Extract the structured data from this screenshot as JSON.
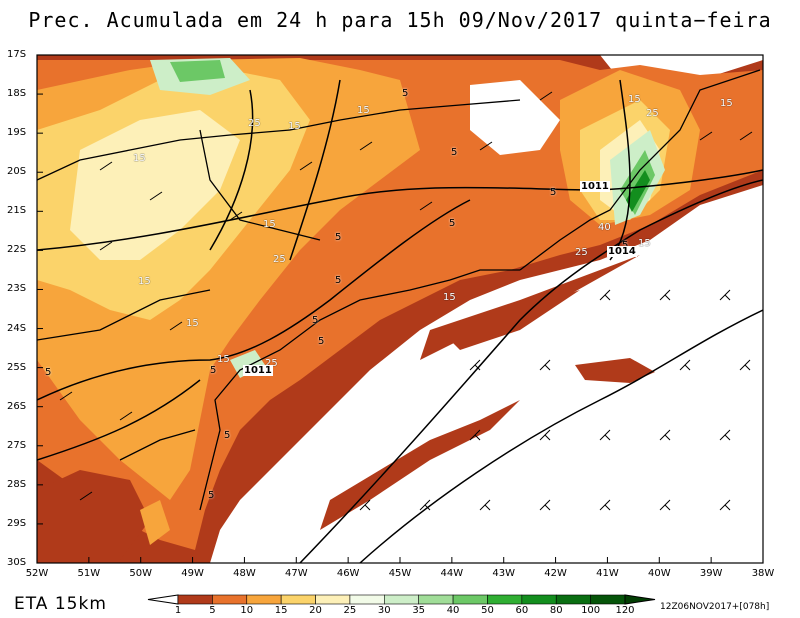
{
  "title": "Prec. Acumulada em 24 h para 15h 09/Nov/2017 quinta−feira",
  "model_label": "ETA 15km",
  "run_label": "12Z06NOV2017+[078h]",
  "lat_labels": [
    "17S",
    "18S",
    "19S",
    "20S",
    "21S",
    "22S",
    "23S",
    "24S",
    "25S",
    "26S",
    "27S",
    "28S",
    "29S",
    "30S"
  ],
  "lon_labels": [
    "52W",
    "51W",
    "50W",
    "49W",
    "48W",
    "47W",
    "46W",
    "45W",
    "44W",
    "43W",
    "42W",
    "41W",
    "40W",
    "39W",
    "38W"
  ],
  "colorbar": {
    "levels": [
      "1",
      "5",
      "10",
      "15",
      "20",
      "25",
      "30",
      "35",
      "40",
      "50",
      "60",
      "80",
      "100",
      "120"
    ],
    "colors": [
      "#b03a1a",
      "#e8722c",
      "#f7a53c",
      "#fbd36a",
      "#fdf0b8",
      "#f2fbe8",
      "#cdeec8",
      "#a0dd98",
      "#6cc866",
      "#2fae32",
      "#138e1e",
      "#0a6e12",
      "#055409",
      "#023e03"
    ]
  },
  "pressure_labels": [
    "1011",
    "1011",
    "1014"
  ],
  "contour_labels": [
    "5",
    "15",
    "25",
    "15",
    "5",
    "15",
    "15",
    "25",
    "15",
    "5",
    "5",
    "5",
    "5",
    "15",
    "25",
    "15",
    "5",
    "15",
    "15",
    "5",
    "25",
    "15",
    "5",
    "5",
    "5",
    "25",
    "40",
    "5",
    "15",
    "5"
  ]
}
